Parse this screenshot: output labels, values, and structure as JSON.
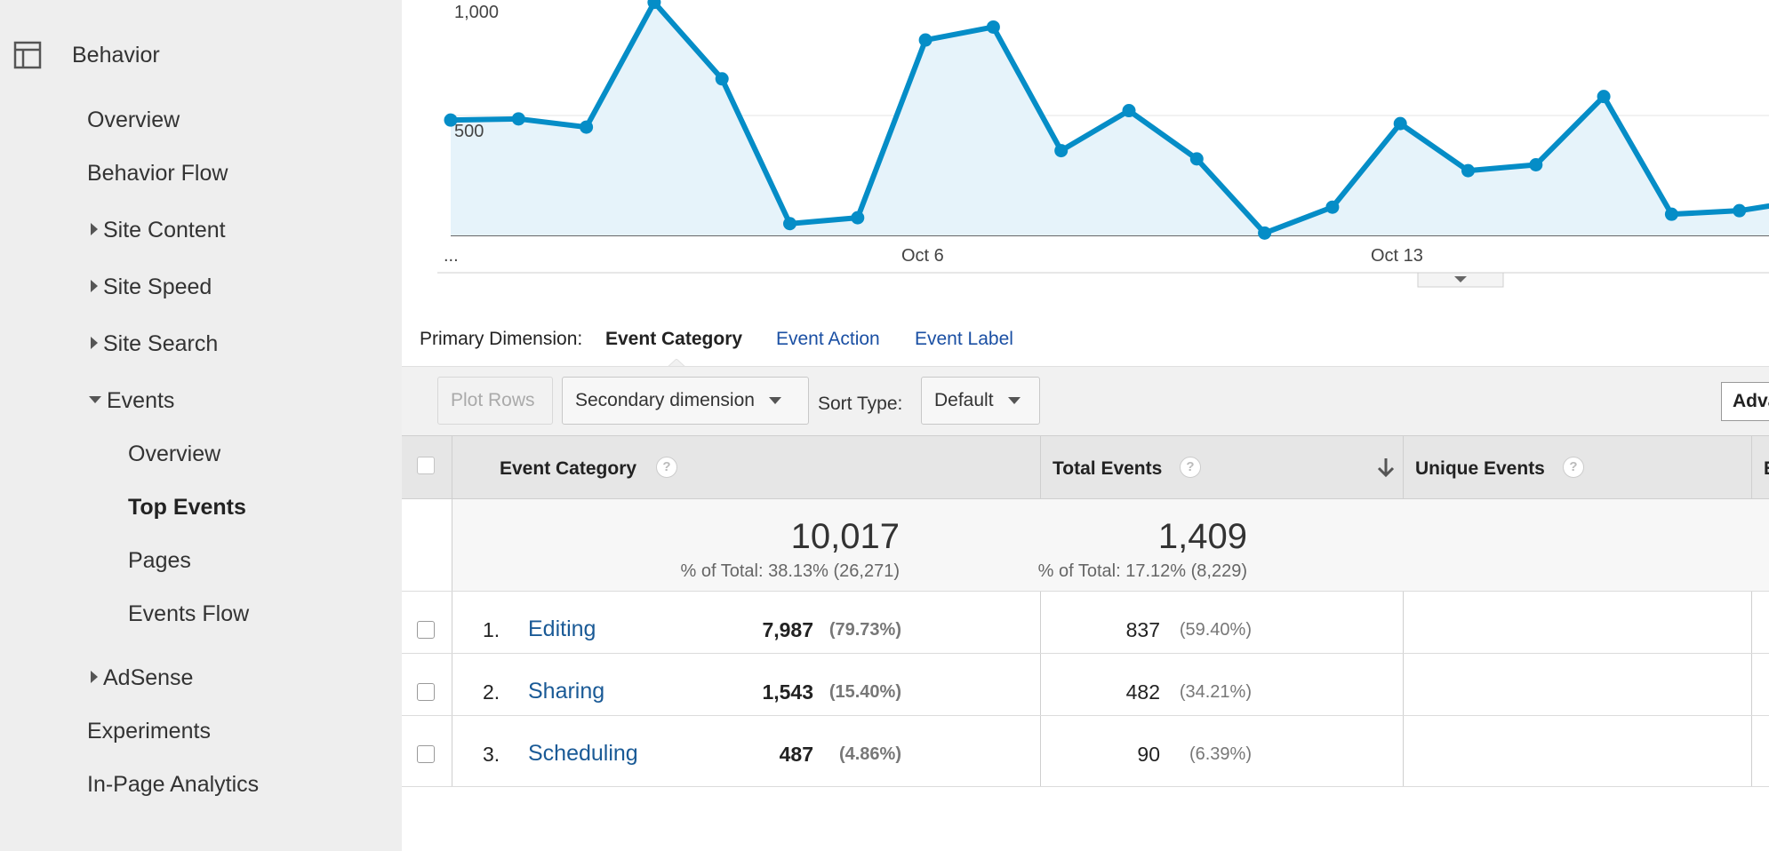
{
  "sidebar": {
    "section_label": "Behavior",
    "section_icon": "layout-icon",
    "items": [
      {
        "label": "Overview"
      },
      {
        "label": "Behavior Flow"
      },
      {
        "label": "Site Content"
      },
      {
        "label": "Site Speed"
      },
      {
        "label": "Site Search"
      },
      {
        "label": "Events"
      },
      {
        "label": "Overview"
      },
      {
        "label": "Top Events"
      },
      {
        "label": "Pages"
      },
      {
        "label": "Events Flow"
      },
      {
        "label": "AdSense"
      },
      {
        "label": "Experiments"
      },
      {
        "label": "In-Page Analytics"
      }
    ]
  },
  "chart_data": {
    "type": "area",
    "x_tick_labels": [
      "...",
      "Oct 6",
      "Oct 13"
    ],
    "y_tick_labels": [
      "1,000",
      "500"
    ],
    "ylim": [
      0,
      1000
    ],
    "series": [
      {
        "color": "#058dc7",
        "values": [
          490,
          495,
          460,
          990,
          665,
          50,
          75,
          830,
          885,
          360,
          530,
          325,
          10,
          120,
          475,
          275,
          300,
          590,
          90,
          105,
          150
        ]
      }
    ],
    "grid": true
  },
  "primary_dimension": {
    "label": "Primary Dimension:",
    "active": "Event Category",
    "options": [
      "Event Action",
      "Event Label"
    ]
  },
  "toolbar": {
    "plot_rows": "Plot Rows",
    "secondary_dimension": "Secondary dimension",
    "sort_type_label": "Sort Type:",
    "sort_type_value": "Default",
    "advanced": "Advanced"
  },
  "table": {
    "columns": [
      "Event Category",
      "Total Events",
      "Unique Events"
    ],
    "totals": {
      "total_events": "10,017",
      "total_events_pct": "% of Total: 38.13% (26,271)",
      "unique_events": "1,409",
      "unique_events_pct": "% of Total: 17.12% (8,229)"
    },
    "rows": [
      {
        "num": "1.",
        "category": "Editing",
        "total": "7,987",
        "total_pct": "(79.73%)",
        "unique": "837",
        "unique_pct": "(59.40%)"
      },
      {
        "num": "2.",
        "category": "Sharing",
        "total": "1,543",
        "total_pct": "(15.40%)",
        "unique": "482",
        "unique_pct": "(34.21%)"
      },
      {
        "num": "3.",
        "category": "Scheduling",
        "total": "487",
        "total_pct": "(4.86%)",
        "unique": "90",
        "unique_pct": "(6.39%)"
      }
    ]
  }
}
